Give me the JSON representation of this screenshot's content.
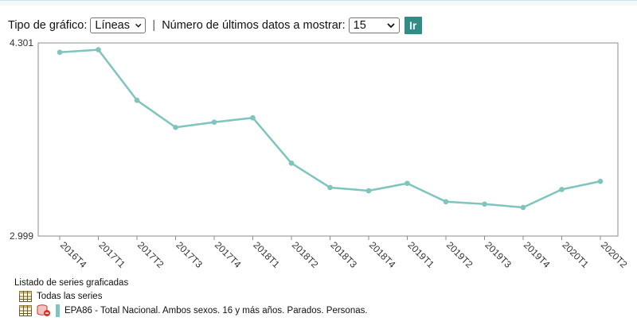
{
  "controls": {
    "chart_type_label": "Tipo de gráfico:",
    "chart_type_value": "Líneas",
    "separator": "|",
    "count_label": "Número de últimos datos a mostrar:",
    "count_value": "15",
    "go_label": "Ir"
  },
  "legend": {
    "title": "Listado de series graficadas",
    "all_series_label": "Todas las series",
    "series_label": "EPA86 - Total Nacional. Ambos sexos. 16 y más años. Parados. Personas."
  },
  "colors": {
    "series": "#7fc4bd",
    "button": "#2f8d86"
  },
  "chart_data": {
    "type": "line",
    "categories": [
      "2016T4",
      "2017T1",
      "2017T2",
      "2017T3",
      "2017T4",
      "2018T1",
      "2018T2",
      "2018T3",
      "2018T4",
      "2019T1",
      "2019T2",
      "2019T3",
      "2019T4",
      "2020T1",
      "2020T2"
    ],
    "series": [
      {
        "name": "EPA86 - Total Nacional. Ambos sexos. 16 y más años. Parados. Personas.",
        "values": [
          4237.8,
          4255.0,
          3914.3,
          3731.7,
          3766.7,
          3796.1,
          3490.1,
          3326.0,
          3304.3,
          3354.2,
          3230.6,
          3214.4,
          3191.9,
          3313.0,
          3368.0
        ]
      }
    ],
    "ylim": [
      2999,
      4301
    ],
    "ytick_labels": [
      "4.301",
      "2.999"
    ],
    "xlabel": "",
    "ylabel": "",
    "grid": false
  }
}
